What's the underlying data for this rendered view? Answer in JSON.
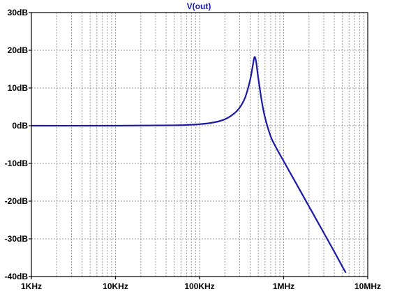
{
  "chart_data": {
    "type": "line",
    "title": "V(out)",
    "xlabel": "",
    "ylabel": "",
    "x_scale": "log",
    "x_unit": "Hz",
    "xlim": [
      1000,
      10000000
    ],
    "ylim": [
      -40,
      30
    ],
    "x_tick_values": [
      1000,
      10000,
      100000,
      1000000,
      10000000
    ],
    "x_tick_labels": [
      "1KHz",
      "10KHz",
      "100KHz",
      "1MHz",
      "10MHz"
    ],
    "y_tick_values": [
      30,
      20,
      10,
      0,
      -10,
      -20,
      -30,
      -40
    ],
    "y_tick_labels": [
      "30dB",
      "20dB",
      "10dB",
      "0dB",
      "-10dB",
      "-20dB",
      "-30dB",
      "-40dB"
    ],
    "grid": true,
    "grid_style": "dashed",
    "series": [
      {
        "name": "V(out)",
        "color": "#1a1aa6",
        "x": [
          1000,
          10000,
          50000,
          100000,
          150000,
          200000,
          250000,
          300000,
          350000,
          400000,
          430000,
          450000,
          470000,
          500000,
          550000,
          600000,
          700000,
          800000,
          1000000,
          1500000,
          2000000,
          3000000,
          4000000,
          5000000,
          5500000
        ],
        "y": [
          0,
          0,
          0.1,
          0.4,
          0.9,
          1.7,
          3.0,
          4.8,
          7.6,
          12.2,
          16.0,
          18.2,
          17.0,
          12.5,
          6.4,
          2.2,
          -2.8,
          -5.5,
          -9.4,
          -16.4,
          -21.4,
          -28.4,
          -33.4,
          -37.4,
          -39.0
        ]
      }
    ]
  }
}
